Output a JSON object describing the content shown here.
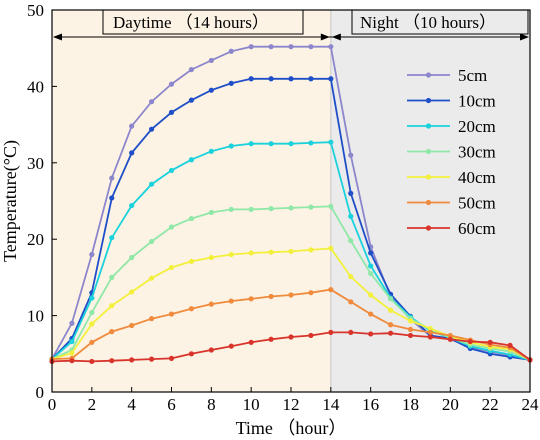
{
  "chart_data": {
    "type": "line",
    "xlabel": "Time （hour）",
    "ylabel": "Temperature(°C)",
    "xlim": [
      0,
      24
    ],
    "ylim": [
      0,
      50
    ],
    "xticks": [
      0,
      2,
      4,
      6,
      8,
      10,
      12,
      14,
      16,
      18,
      20,
      22,
      24
    ],
    "yticks": [
      0,
      10,
      20,
      30,
      40,
      50
    ],
    "grid": false,
    "legend_position": "right",
    "annotations": {
      "day_label": "Daytime （14 hours）",
      "night_label": "Night （10 hours）",
      "day_range": [
        0,
        14
      ],
      "night_range": [
        14,
        24
      ]
    },
    "background_colors": {
      "day": "#fdf3e4",
      "night": "#ebebeb"
    },
    "x": [
      0,
      1,
      2,
      3,
      4,
      5,
      6,
      7,
      8,
      9,
      10,
      11,
      12,
      13,
      14,
      15,
      16,
      17,
      18,
      19,
      20,
      21,
      22,
      23,
      24
    ],
    "series": [
      {
        "name": "5cm",
        "color": "#8c86cc",
        "values": [
          4.3,
          9.0,
          18.0,
          28.0,
          34.8,
          38.0,
          40.3,
          42.2,
          43.4,
          44.6,
          45.2,
          45.2,
          45.2,
          45.2,
          45.2,
          31.0,
          19.0,
          12.5,
          9.5,
          7.3,
          6.9,
          5.9,
          5.3,
          4.8,
          4.2
        ]
      },
      {
        "name": "10cm",
        "color": "#1f4fc8",
        "values": [
          4.3,
          7.0,
          13.0,
          25.4,
          31.3,
          34.4,
          36.6,
          38.2,
          39.5,
          40.4,
          41.0,
          41.0,
          41.0,
          41.0,
          41.0,
          26.0,
          18.2,
          12.8,
          9.9,
          7.4,
          7.0,
          5.7,
          5.0,
          4.6,
          4.2
        ]
      },
      {
        "name": "20cm",
        "color": "#19d2dc",
        "values": [
          4.3,
          6.6,
          12.3,
          20.2,
          24.4,
          27.2,
          29.0,
          30.4,
          31.5,
          32.2,
          32.5,
          32.5,
          32.5,
          32.6,
          32.7,
          23.0,
          16.5,
          12.3,
          9.8,
          8.0,
          7.1,
          6.0,
          5.4,
          4.9,
          4.2
        ]
      },
      {
        "name": "30cm",
        "color": "#8fe8a7",
        "values": [
          4.3,
          5.5,
          10.4,
          15.0,
          17.6,
          19.7,
          21.6,
          22.7,
          23.5,
          23.9,
          23.9,
          24.0,
          24.1,
          24.2,
          24.3,
          19.8,
          15.5,
          12.2,
          9.6,
          8.2,
          7.1,
          6.2,
          5.7,
          5.3,
          4.2
        ]
      },
      {
        "name": "40cm",
        "color": "#f3f03c",
        "values": [
          4.3,
          5.1,
          8.9,
          11.3,
          13.1,
          14.9,
          16.3,
          17.1,
          17.6,
          18.0,
          18.2,
          18.3,
          18.4,
          18.6,
          18.8,
          15.1,
          12.7,
          10.7,
          9.3,
          8.3,
          7.3,
          6.5,
          5.9,
          5.6,
          4.2
        ]
      },
      {
        "name": "50cm",
        "color": "#f08a3c",
        "values": [
          4.3,
          4.4,
          6.5,
          7.9,
          8.7,
          9.6,
          10.2,
          10.9,
          11.5,
          11.9,
          12.2,
          12.5,
          12.7,
          13.0,
          13.4,
          11.8,
          10.2,
          8.8,
          8.2,
          7.8,
          7.4,
          6.8,
          6.2,
          5.8,
          4.2
        ]
      },
      {
        "name": "60cm",
        "color": "#d8342c",
        "values": [
          4.0,
          4.1,
          4.0,
          4.1,
          4.2,
          4.3,
          4.4,
          5.0,
          5.5,
          6.0,
          6.5,
          6.9,
          7.2,
          7.4,
          7.8,
          7.8,
          7.6,
          7.7,
          7.4,
          7.2,
          6.9,
          6.6,
          6.5,
          6.1,
          4.2
        ]
      }
    ]
  }
}
